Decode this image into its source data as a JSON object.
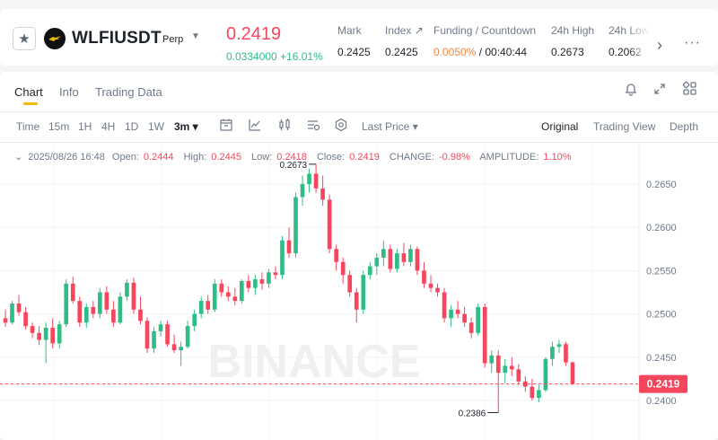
{
  "header": {
    "symbol": "WLFIUSDT",
    "tag": "Perp",
    "last_price": "0.2419",
    "price_change": "0.0334000 +16.01%",
    "stats": [
      {
        "label": "Mark",
        "value": "0.2425"
      },
      {
        "label": "Index ↗",
        "value": "0.2425"
      },
      {
        "label": "Funding / Countdown",
        "value_red": "0.0050%",
        "value_rest": " / 00:40:44"
      },
      {
        "label": "24h High",
        "value": "0.2673"
      },
      {
        "label": "24h Low",
        "value": "0.2062"
      }
    ],
    "colors": {
      "up": "#2ebd85",
      "down": "#f6465d",
      "accent": "#f0b90b"
    }
  },
  "tabs": [
    {
      "label": "Chart",
      "active": true
    },
    {
      "label": "Info",
      "active": false
    },
    {
      "label": "Trading Data",
      "active": false
    }
  ],
  "toolbar": {
    "intervals": [
      "Time",
      "15m",
      "1H",
      "4H",
      "1D",
      "1W",
      "3m ▾"
    ],
    "active_interval": "3m",
    "price_source": "Last Price ▾",
    "views": [
      "Original",
      "Trading View",
      "Depth"
    ],
    "active_view": "Original"
  },
  "ohlc": {
    "date": "2025/08/26 16:48",
    "open_label": "Open:",
    "open": "0.2444",
    "high_label": "High:",
    "high": "0.2445",
    "low_label": "Low:",
    "low": "0.2418",
    "close_label": "Close:",
    "close": "0.2419",
    "change_label": "CHANGE:",
    "change": "-0.98%",
    "amp_label": "AMPLITUDE:",
    "amp": "1.10%"
  },
  "chart_data": {
    "type": "candlestick",
    "y_ticks": [
      "0.2650",
      "0.2600",
      "0.2550",
      "0.2500",
      "0.2450",
      "0.2400"
    ],
    "ylim": [
      0.2372,
      0.268
    ],
    "current_price_label": "0.2419",
    "current_price": 0.2419,
    "high_marker": "0.2673",
    "high_value": 0.2673,
    "low_marker": "0.2386",
    "low_value": 0.2386,
    "watermark": "BINANCE",
    "candles": [
      [
        0.2495,
        0.2505,
        0.2485,
        0.249
      ],
      [
        0.249,
        0.2515,
        0.2488,
        0.2512
      ],
      [
        0.2512,
        0.2522,
        0.2498,
        0.2502
      ],
      [
        0.2502,
        0.2508,
        0.2482,
        0.2486
      ],
      [
        0.2486,
        0.249,
        0.2472,
        0.2478
      ],
      [
        0.2478,
        0.2486,
        0.2464,
        0.247
      ],
      [
        0.247,
        0.249,
        0.2443,
        0.2484
      ],
      [
        0.2484,
        0.2495,
        0.246,
        0.2466
      ],
      [
        0.2466,
        0.2492,
        0.246,
        0.2488
      ],
      [
        0.2488,
        0.254,
        0.2485,
        0.2535
      ],
      [
        0.2535,
        0.2543,
        0.2512,
        0.2515
      ],
      [
        0.2515,
        0.252,
        0.2485,
        0.249
      ],
      [
        0.249,
        0.2512,
        0.2484,
        0.2508
      ],
      [
        0.2508,
        0.2515,
        0.2495,
        0.25
      ],
      [
        0.25,
        0.253,
        0.2495,
        0.2525
      ],
      [
        0.2525,
        0.2532,
        0.25,
        0.2505
      ],
      [
        0.2505,
        0.2515,
        0.2485,
        0.249
      ],
      [
        0.249,
        0.2525,
        0.2488,
        0.252
      ],
      [
        0.252,
        0.254,
        0.2515,
        0.2536
      ],
      [
        0.2536,
        0.2542,
        0.25,
        0.2505
      ],
      [
        0.2505,
        0.252,
        0.2488,
        0.2492
      ],
      [
        0.2492,
        0.2496,
        0.2455,
        0.246
      ],
      [
        0.246,
        0.2485,
        0.2455,
        0.248
      ],
      [
        0.248,
        0.2492,
        0.2474,
        0.2488
      ],
      [
        0.2488,
        0.2492,
        0.2462,
        0.2465
      ],
      [
        0.2465,
        0.2476,
        0.2455,
        0.2458
      ],
      [
        0.2458,
        0.2468,
        0.244,
        0.2462
      ],
      [
        0.2462,
        0.2492,
        0.246,
        0.2486
      ],
      [
        0.2486,
        0.2505,
        0.248,
        0.25
      ],
      [
        0.25,
        0.252,
        0.2495,
        0.2515
      ],
      [
        0.2515,
        0.2522,
        0.25,
        0.2505
      ],
      [
        0.2505,
        0.254,
        0.2502,
        0.2535
      ],
      [
        0.2535,
        0.254,
        0.252,
        0.2525
      ],
      [
        0.2525,
        0.2532,
        0.2515,
        0.252
      ],
      [
        0.252,
        0.253,
        0.251,
        0.2515
      ],
      [
        0.2515,
        0.254,
        0.2512,
        0.2538
      ],
      [
        0.2538,
        0.2545,
        0.2525,
        0.253
      ],
      [
        0.253,
        0.2545,
        0.2522,
        0.254
      ],
      [
        0.254,
        0.2548,
        0.2528,
        0.2535
      ],
      [
        0.2535,
        0.2552,
        0.253,
        0.2548
      ],
      [
        0.2548,
        0.2555,
        0.254,
        0.2545
      ],
      [
        0.2545,
        0.259,
        0.254,
        0.2585
      ],
      [
        0.2585,
        0.26,
        0.2565,
        0.257
      ],
      [
        0.257,
        0.264,
        0.2565,
        0.2635
      ],
      [
        0.2635,
        0.266,
        0.2625,
        0.265
      ],
      [
        0.265,
        0.2668,
        0.264,
        0.2662
      ],
      [
        0.2662,
        0.2673,
        0.264,
        0.2645
      ],
      [
        0.2645,
        0.266,
        0.2625,
        0.2632
      ],
      [
        0.2632,
        0.2638,
        0.257,
        0.2575
      ],
      [
        0.2575,
        0.258,
        0.255,
        0.256
      ],
      [
        0.256,
        0.2565,
        0.2535,
        0.2545
      ],
      [
        0.2545,
        0.255,
        0.252,
        0.2525
      ],
      [
        0.2525,
        0.253,
        0.249,
        0.2505
      ],
      [
        0.2505,
        0.255,
        0.25,
        0.2545
      ],
      [
        0.2545,
        0.256,
        0.254,
        0.2555
      ],
      [
        0.2555,
        0.257,
        0.2545,
        0.2565
      ],
      [
        0.2565,
        0.2585,
        0.2555,
        0.2575
      ],
      [
        0.2575,
        0.258,
        0.2548,
        0.2552
      ],
      [
        0.2552,
        0.2575,
        0.2548,
        0.257
      ],
      [
        0.257,
        0.2582,
        0.2555,
        0.256
      ],
      [
        0.256,
        0.258,
        0.2555,
        0.2575
      ],
      [
        0.2575,
        0.2578,
        0.2545,
        0.255
      ],
      [
        0.255,
        0.256,
        0.253,
        0.2535
      ],
      [
        0.2535,
        0.2545,
        0.2525,
        0.253
      ],
      [
        0.253,
        0.2535,
        0.252,
        0.2525
      ],
      [
        0.2525,
        0.253,
        0.249,
        0.2495
      ],
      [
        0.2495,
        0.251,
        0.2485,
        0.2505
      ],
      [
        0.2505,
        0.2515,
        0.2495,
        0.25
      ],
      [
        0.25,
        0.2508,
        0.2485,
        0.249
      ],
      [
        0.249,
        0.2496,
        0.2472,
        0.2478
      ],
      [
        0.2478,
        0.2512,
        0.2475,
        0.2508
      ],
      [
        0.2508,
        0.2512,
        0.2438,
        0.2443
      ],
      [
        0.2443,
        0.2458,
        0.2432,
        0.2452
      ],
      [
        0.2452,
        0.2458,
        0.2386,
        0.2432
      ],
      [
        0.2432,
        0.2448,
        0.242,
        0.244
      ],
      [
        0.244,
        0.245,
        0.2428,
        0.2436
      ],
      [
        0.2436,
        0.2442,
        0.2418,
        0.2422
      ],
      [
        0.2422,
        0.2428,
        0.241,
        0.2416
      ],
      [
        0.2416,
        0.2425,
        0.24,
        0.2403
      ],
      [
        0.2403,
        0.2418,
        0.2398,
        0.2412
      ],
      [
        0.2412,
        0.245,
        0.241,
        0.2448
      ],
      [
        0.2448,
        0.2468,
        0.244,
        0.2462
      ],
      [
        0.2462,
        0.247,
        0.2455,
        0.2465
      ],
      [
        0.2465,
        0.2468,
        0.244,
        0.2444
      ],
      [
        0.2444,
        0.2445,
        0.2418,
        0.2419
      ]
    ]
  }
}
